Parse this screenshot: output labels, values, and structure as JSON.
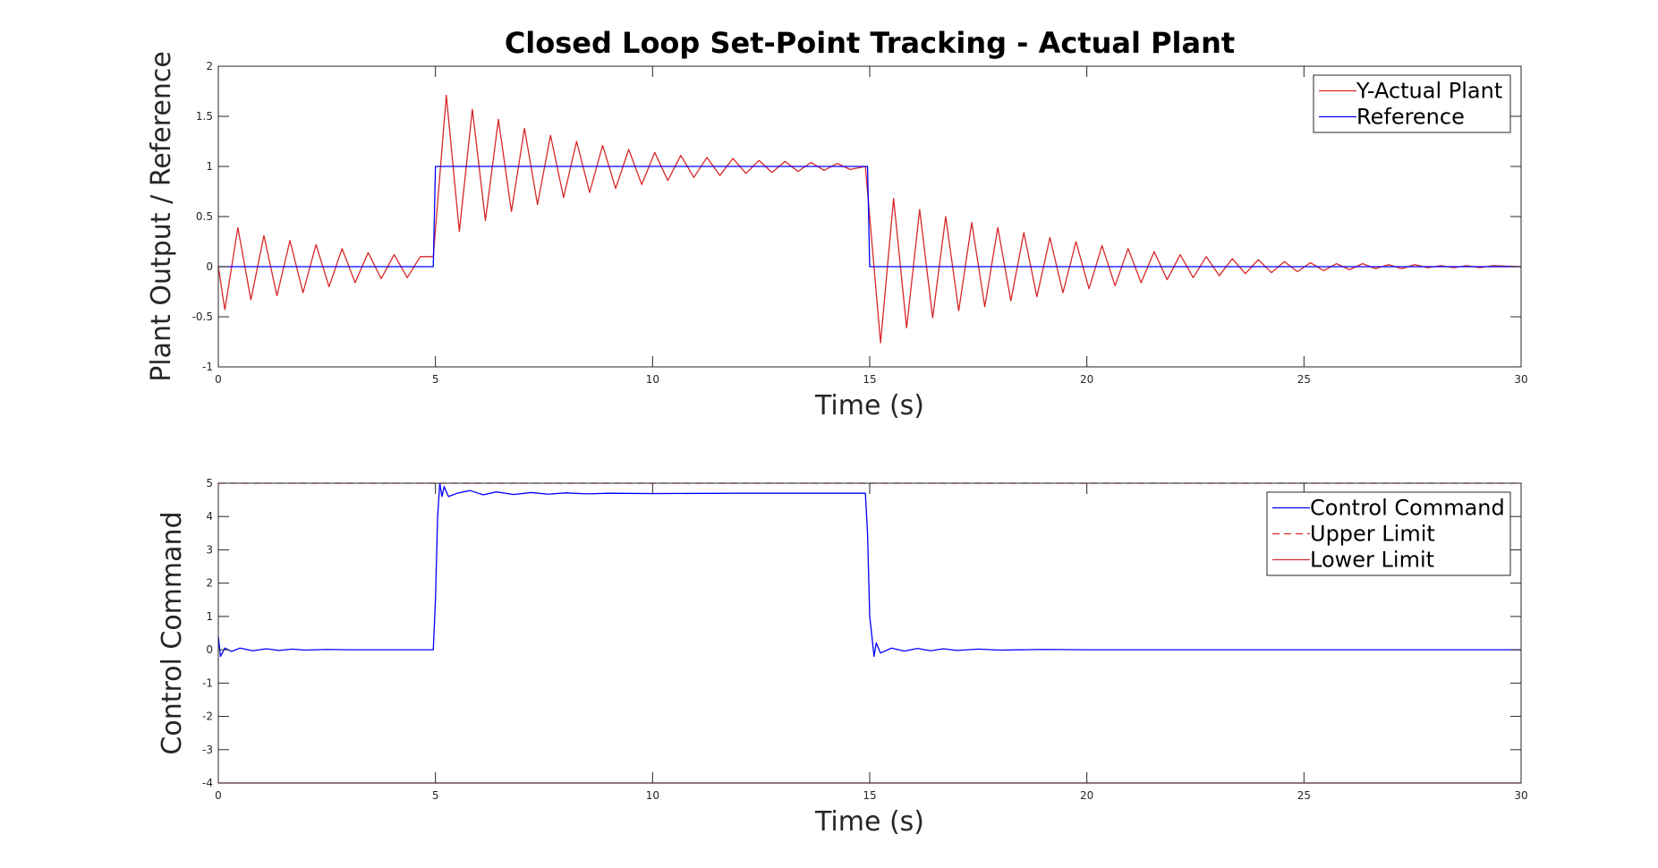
{
  "chart_data": [
    {
      "type": "line",
      "title": "Closed Loop Set-Point Tracking - Actual Plant",
      "xlabel": "Time (s)",
      "ylabel": "Plant Output / Reference",
      "xlim": [
        0,
        30
      ],
      "ylim": [
        -1,
        2
      ],
      "xticks": [
        0,
        5,
        10,
        15,
        20,
        25,
        30
      ],
      "yticks": [
        -1,
        -0.5,
        0,
        0.5,
        1,
        1.5,
        2
      ],
      "xtick_labels": [
        "0",
        "5",
        "10",
        "15",
        "20",
        "25",
        "30"
      ],
      "ytick_labels": [
        "-1",
        "-0.5",
        "0",
        "0.5",
        "1",
        "1.5",
        "2"
      ],
      "grid": false,
      "legend_position": "top-right",
      "series": [
        {
          "name": "Y-Actual Plant",
          "color": "#d62728",
          "style": "solid",
          "points": [
            [
              0,
              0
            ],
            [
              0.15,
              -0.43
            ],
            [
              0.45,
              0.39
            ],
            [
              0.75,
              -0.33
            ],
            [
              1.05,
              0.31
            ],
            [
              1.35,
              -0.29
            ],
            [
              1.65,
              0.26
            ],
            [
              1.95,
              -0.26
            ],
            [
              2.25,
              0.22
            ],
            [
              2.55,
              -0.2
            ],
            [
              2.85,
              0.18
            ],
            [
              3.15,
              -0.16
            ],
            [
              3.45,
              0.14
            ],
            [
              3.75,
              -0.12
            ],
            [
              4.05,
              0.12
            ],
            [
              4.35,
              -0.11
            ],
            [
              4.65,
              0.1
            ],
            [
              4.95,
              0.1
            ],
            [
              5.25,
              1.71
            ],
            [
              5.55,
              0.35
            ],
            [
              5.85,
              1.57
            ],
            [
              6.15,
              0.46
            ],
            [
              6.45,
              1.47
            ],
            [
              6.75,
              0.55
            ],
            [
              7.05,
              1.38
            ],
            [
              7.35,
              0.62
            ],
            [
              7.65,
              1.31
            ],
            [
              7.95,
              0.69
            ],
            [
              8.25,
              1.25
            ],
            [
              8.55,
              0.74
            ],
            [
              8.85,
              1.21
            ],
            [
              9.15,
              0.78
            ],
            [
              9.45,
              1.17
            ],
            [
              9.75,
              0.82
            ],
            [
              10.05,
              1.14
            ],
            [
              10.35,
              0.86
            ],
            [
              10.65,
              1.11
            ],
            [
              10.95,
              0.89
            ],
            [
              11.25,
              1.09
            ],
            [
              11.55,
              0.91
            ],
            [
              11.85,
              1.08
            ],
            [
              12.15,
              0.93
            ],
            [
              12.45,
              1.06
            ],
            [
              12.75,
              0.94
            ],
            [
              13.05,
              1.05
            ],
            [
              13.35,
              0.95
            ],
            [
              13.65,
              1.04
            ],
            [
              13.95,
              0.96
            ],
            [
              14.25,
              1.03
            ],
            [
              14.55,
              0.97
            ],
            [
              14.9,
              1.0
            ],
            [
              15.25,
              -0.76
            ],
            [
              15.55,
              0.68
            ],
            [
              15.85,
              -0.61
            ],
            [
              16.15,
              0.57
            ],
            [
              16.45,
              -0.51
            ],
            [
              16.75,
              0.5
            ],
            [
              17.05,
              -0.44
            ],
            [
              17.35,
              0.44
            ],
            [
              17.65,
              -0.4
            ],
            [
              17.95,
              0.39
            ],
            [
              18.25,
              -0.34
            ],
            [
              18.55,
              0.34
            ],
            [
              18.85,
              -0.3
            ],
            [
              19.15,
              0.29
            ],
            [
              19.45,
              -0.26
            ],
            [
              19.75,
              0.25
            ],
            [
              20.05,
              -0.22
            ],
            [
              20.35,
              0.21
            ],
            [
              20.65,
              -0.19
            ],
            [
              20.95,
              0.18
            ],
            [
              21.25,
              -0.16
            ],
            [
              21.55,
              0.15
            ],
            [
              21.85,
              -0.13
            ],
            [
              22.15,
              0.12
            ],
            [
              22.45,
              -0.11
            ],
            [
              22.75,
              0.1
            ],
            [
              23.05,
              -0.09
            ],
            [
              23.35,
              0.08
            ],
            [
              23.65,
              -0.07
            ],
            [
              23.95,
              0.07
            ],
            [
              24.25,
              -0.06
            ],
            [
              24.55,
              0.05
            ],
            [
              24.85,
              -0.05
            ],
            [
              25.15,
              0.04
            ],
            [
              25.45,
              -0.04
            ],
            [
              25.75,
              0.03
            ],
            [
              26.05,
              -0.03
            ],
            [
              26.35,
              0.03
            ],
            [
              26.65,
              -0.02
            ],
            [
              26.95,
              0.02
            ],
            [
              27.25,
              -0.02
            ],
            [
              27.55,
              0.02
            ],
            [
              27.85,
              -0.01
            ],
            [
              28.15,
              0.01
            ],
            [
              28.45,
              -0.01
            ],
            [
              28.75,
              0.01
            ],
            [
              29.05,
              -0.01
            ],
            [
              29.35,
              0.01
            ],
            [
              30,
              0
            ]
          ]
        },
        {
          "name": "Reference",
          "color": "#0000ff",
          "style": "solid",
          "points": [
            [
              0,
              0
            ],
            [
              4.95,
              0
            ],
            [
              5.0,
              1
            ],
            [
              14.95,
              1
            ],
            [
              15.0,
              0
            ],
            [
              30,
              0
            ]
          ]
        }
      ]
    },
    {
      "type": "line",
      "title": "",
      "xlabel": "Time (s)",
      "ylabel": "Control Command",
      "xlim": [
        0,
        30
      ],
      "ylim": [
        -4,
        5
      ],
      "xticks": [
        0,
        5,
        10,
        15,
        20,
        25,
        30
      ],
      "yticks": [
        -4,
        -3,
        -2,
        -1,
        0,
        1,
        2,
        3,
        4,
        5
      ],
      "xtick_labels": [
        "0",
        "5",
        "10",
        "15",
        "20",
        "25",
        "30"
      ],
      "ytick_labels": [
        "-4",
        "-3",
        "-2",
        "-1",
        "0",
        "1",
        "2",
        "3",
        "4",
        "5"
      ],
      "grid": false,
      "legend_position": "top-right",
      "series": [
        {
          "name": "Control Command",
          "color": "#0000ff",
          "style": "solid",
          "points": [
            [
              0,
              0.4
            ],
            [
              0.05,
              -0.2
            ],
            [
              0.15,
              0.05
            ],
            [
              0.3,
              -0.05
            ],
            [
              0.5,
              0.05
            ],
            [
              0.8,
              -0.03
            ],
            [
              1.1,
              0.03
            ],
            [
              1.4,
              -0.02
            ],
            [
              1.7,
              0.02
            ],
            [
              2.0,
              -0.01
            ],
            [
              2.5,
              0.01
            ],
            [
              3.0,
              0
            ],
            [
              4.95,
              0
            ],
            [
              5.0,
              1.5
            ],
            [
              5.05,
              4.0
            ],
            [
              5.1,
              5.0
            ],
            [
              5.15,
              4.6
            ],
            [
              5.2,
              4.9
            ],
            [
              5.3,
              4.6
            ],
            [
              5.5,
              4.7
            ],
            [
              5.8,
              4.78
            ],
            [
              6.1,
              4.65
            ],
            [
              6.4,
              4.74
            ],
            [
              6.8,
              4.66
            ],
            [
              7.2,
              4.72
            ],
            [
              7.6,
              4.67
            ],
            [
              8.0,
              4.71
            ],
            [
              8.5,
              4.68
            ],
            [
              9.0,
              4.7
            ],
            [
              10.0,
              4.69
            ],
            [
              12.0,
              4.7
            ],
            [
              14.9,
              4.7
            ],
            [
              14.95,
              3.5
            ],
            [
              15.0,
              1.0
            ],
            [
              15.05,
              0.4
            ],
            [
              15.1,
              -0.2
            ],
            [
              15.15,
              0.2
            ],
            [
              15.25,
              -0.1
            ],
            [
              15.5,
              0.05
            ],
            [
              15.8,
              -0.04
            ],
            [
              16.1,
              0.04
            ],
            [
              16.4,
              -0.03
            ],
            [
              16.7,
              0.03
            ],
            [
              17.0,
              -0.02
            ],
            [
              17.5,
              0.02
            ],
            [
              18.0,
              -0.01
            ],
            [
              19.0,
              0.01
            ],
            [
              20.0,
              0
            ],
            [
              30,
              0
            ]
          ]
        },
        {
          "name": "Upper Limit",
          "color": "#d62728",
          "style": "dashed",
          "points": [
            [
              0,
              5
            ],
            [
              30,
              5
            ]
          ]
        },
        {
          "name": "Lower Limit",
          "color": "#d62728",
          "style": "solid",
          "points": [
            [
              0,
              -4
            ],
            [
              30,
              -4
            ]
          ]
        }
      ]
    }
  ]
}
